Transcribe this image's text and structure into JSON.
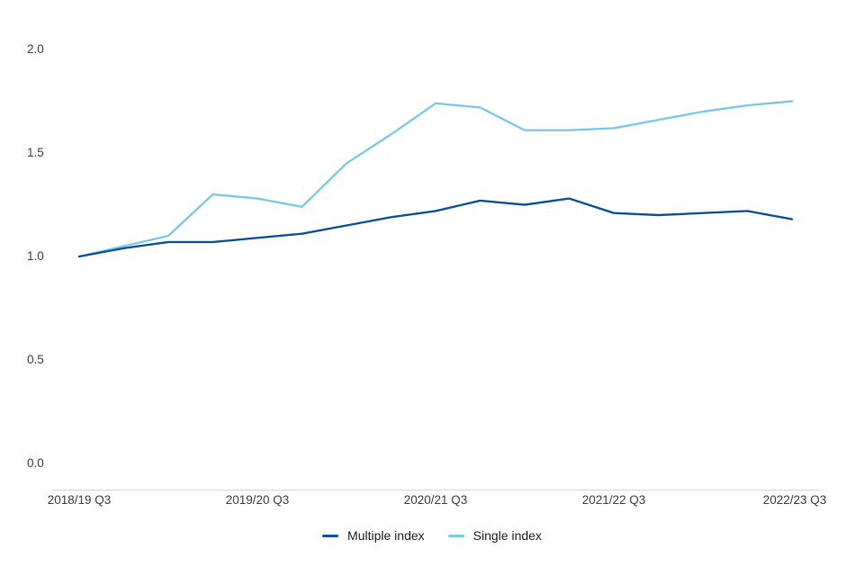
{
  "chart_data": {
    "type": "line",
    "x_tick_labels": [
      "2018/19 Q3",
      "2019/20 Q3",
      "2020/21 Q3",
      "2021/22 Q3",
      "2022/23 Q3"
    ],
    "x_tick_point_indices": [
      0,
      4,
      8,
      12,
      16
    ],
    "points_per_series": 17,
    "x_frequency": "quarterly",
    "y_tick_labels": [
      "2.0",
      "1.5",
      "1.0",
      "0.5",
      "0.0"
    ],
    "y_ticks": [
      2.0,
      1.5,
      1.0,
      0.5,
      0.0
    ],
    "ylim": [
      0.0,
      2.0
    ],
    "grid": "off",
    "legend_position": "bottom-center",
    "series": [
      {
        "name": "Multiple index",
        "color": "#105499",
        "values": [
          1.0,
          1.04,
          1.07,
          1.07,
          1.09,
          1.11,
          1.15,
          1.19,
          1.22,
          1.27,
          1.25,
          1.28,
          1.21,
          1.2,
          1.21,
          1.22,
          1.18
        ]
      },
      {
        "name": "Single index",
        "color": "#7EC9E8",
        "values": [
          1.0,
          1.05,
          1.1,
          1.3,
          1.28,
          1.24,
          1.45,
          1.59,
          1.74,
          1.72,
          1.61,
          1.61,
          1.62,
          1.66,
          1.7,
          1.73,
          1.75
        ]
      }
    ]
  },
  "colors": {
    "axis_line": "#d9d9d9",
    "tick_text": "#414042",
    "legend_text": "#1f1f1f"
  }
}
